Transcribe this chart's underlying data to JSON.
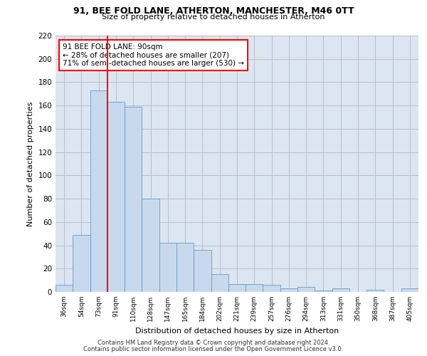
{
  "title_line1": "91, BEE FOLD LANE, ATHERTON, MANCHESTER, M46 0TT",
  "title_line2": "Size of property relative to detached houses in Atherton",
  "xlabel": "Distribution of detached houses by size in Atherton",
  "ylabel": "Number of detached properties",
  "categories": [
    "36sqm",
    "54sqm",
    "73sqm",
    "91sqm",
    "110sqm",
    "128sqm",
    "147sqm",
    "165sqm",
    "184sqm",
    "202sqm",
    "221sqm",
    "239sqm",
    "257sqm",
    "276sqm",
    "294sqm",
    "313sqm",
    "331sqm",
    "350sqm",
    "368sqm",
    "387sqm",
    "405sqm"
  ],
  "values": [
    6,
    49,
    173,
    163,
    159,
    80,
    42,
    42,
    36,
    15,
    7,
    7,
    6,
    3,
    4,
    1,
    3,
    0,
    2,
    0,
    3
  ],
  "bar_color": "#c8d9ee",
  "bar_edge_color": "#6699cc",
  "vline_color": "red",
  "vline_x_index": 3,
  "annotation_text": "91 BEE FOLD LANE: 90sqm\n← 28% of detached houses are smaller (207)\n71% of semi-detached houses are larger (530) →",
  "annotation_box_color": "white",
  "annotation_box_edge": "red",
  "ylim": [
    0,
    220
  ],
  "yticks": [
    0,
    20,
    40,
    60,
    80,
    100,
    120,
    140,
    160,
    180,
    200,
    220
  ],
  "grid_color": "#bbbbcc",
  "background_color": "#dce6f1",
  "footer_line1": "Contains HM Land Registry data © Crown copyright and database right 2024.",
  "footer_line2": "Contains public sector information licensed under the Open Government Licence v3.0."
}
